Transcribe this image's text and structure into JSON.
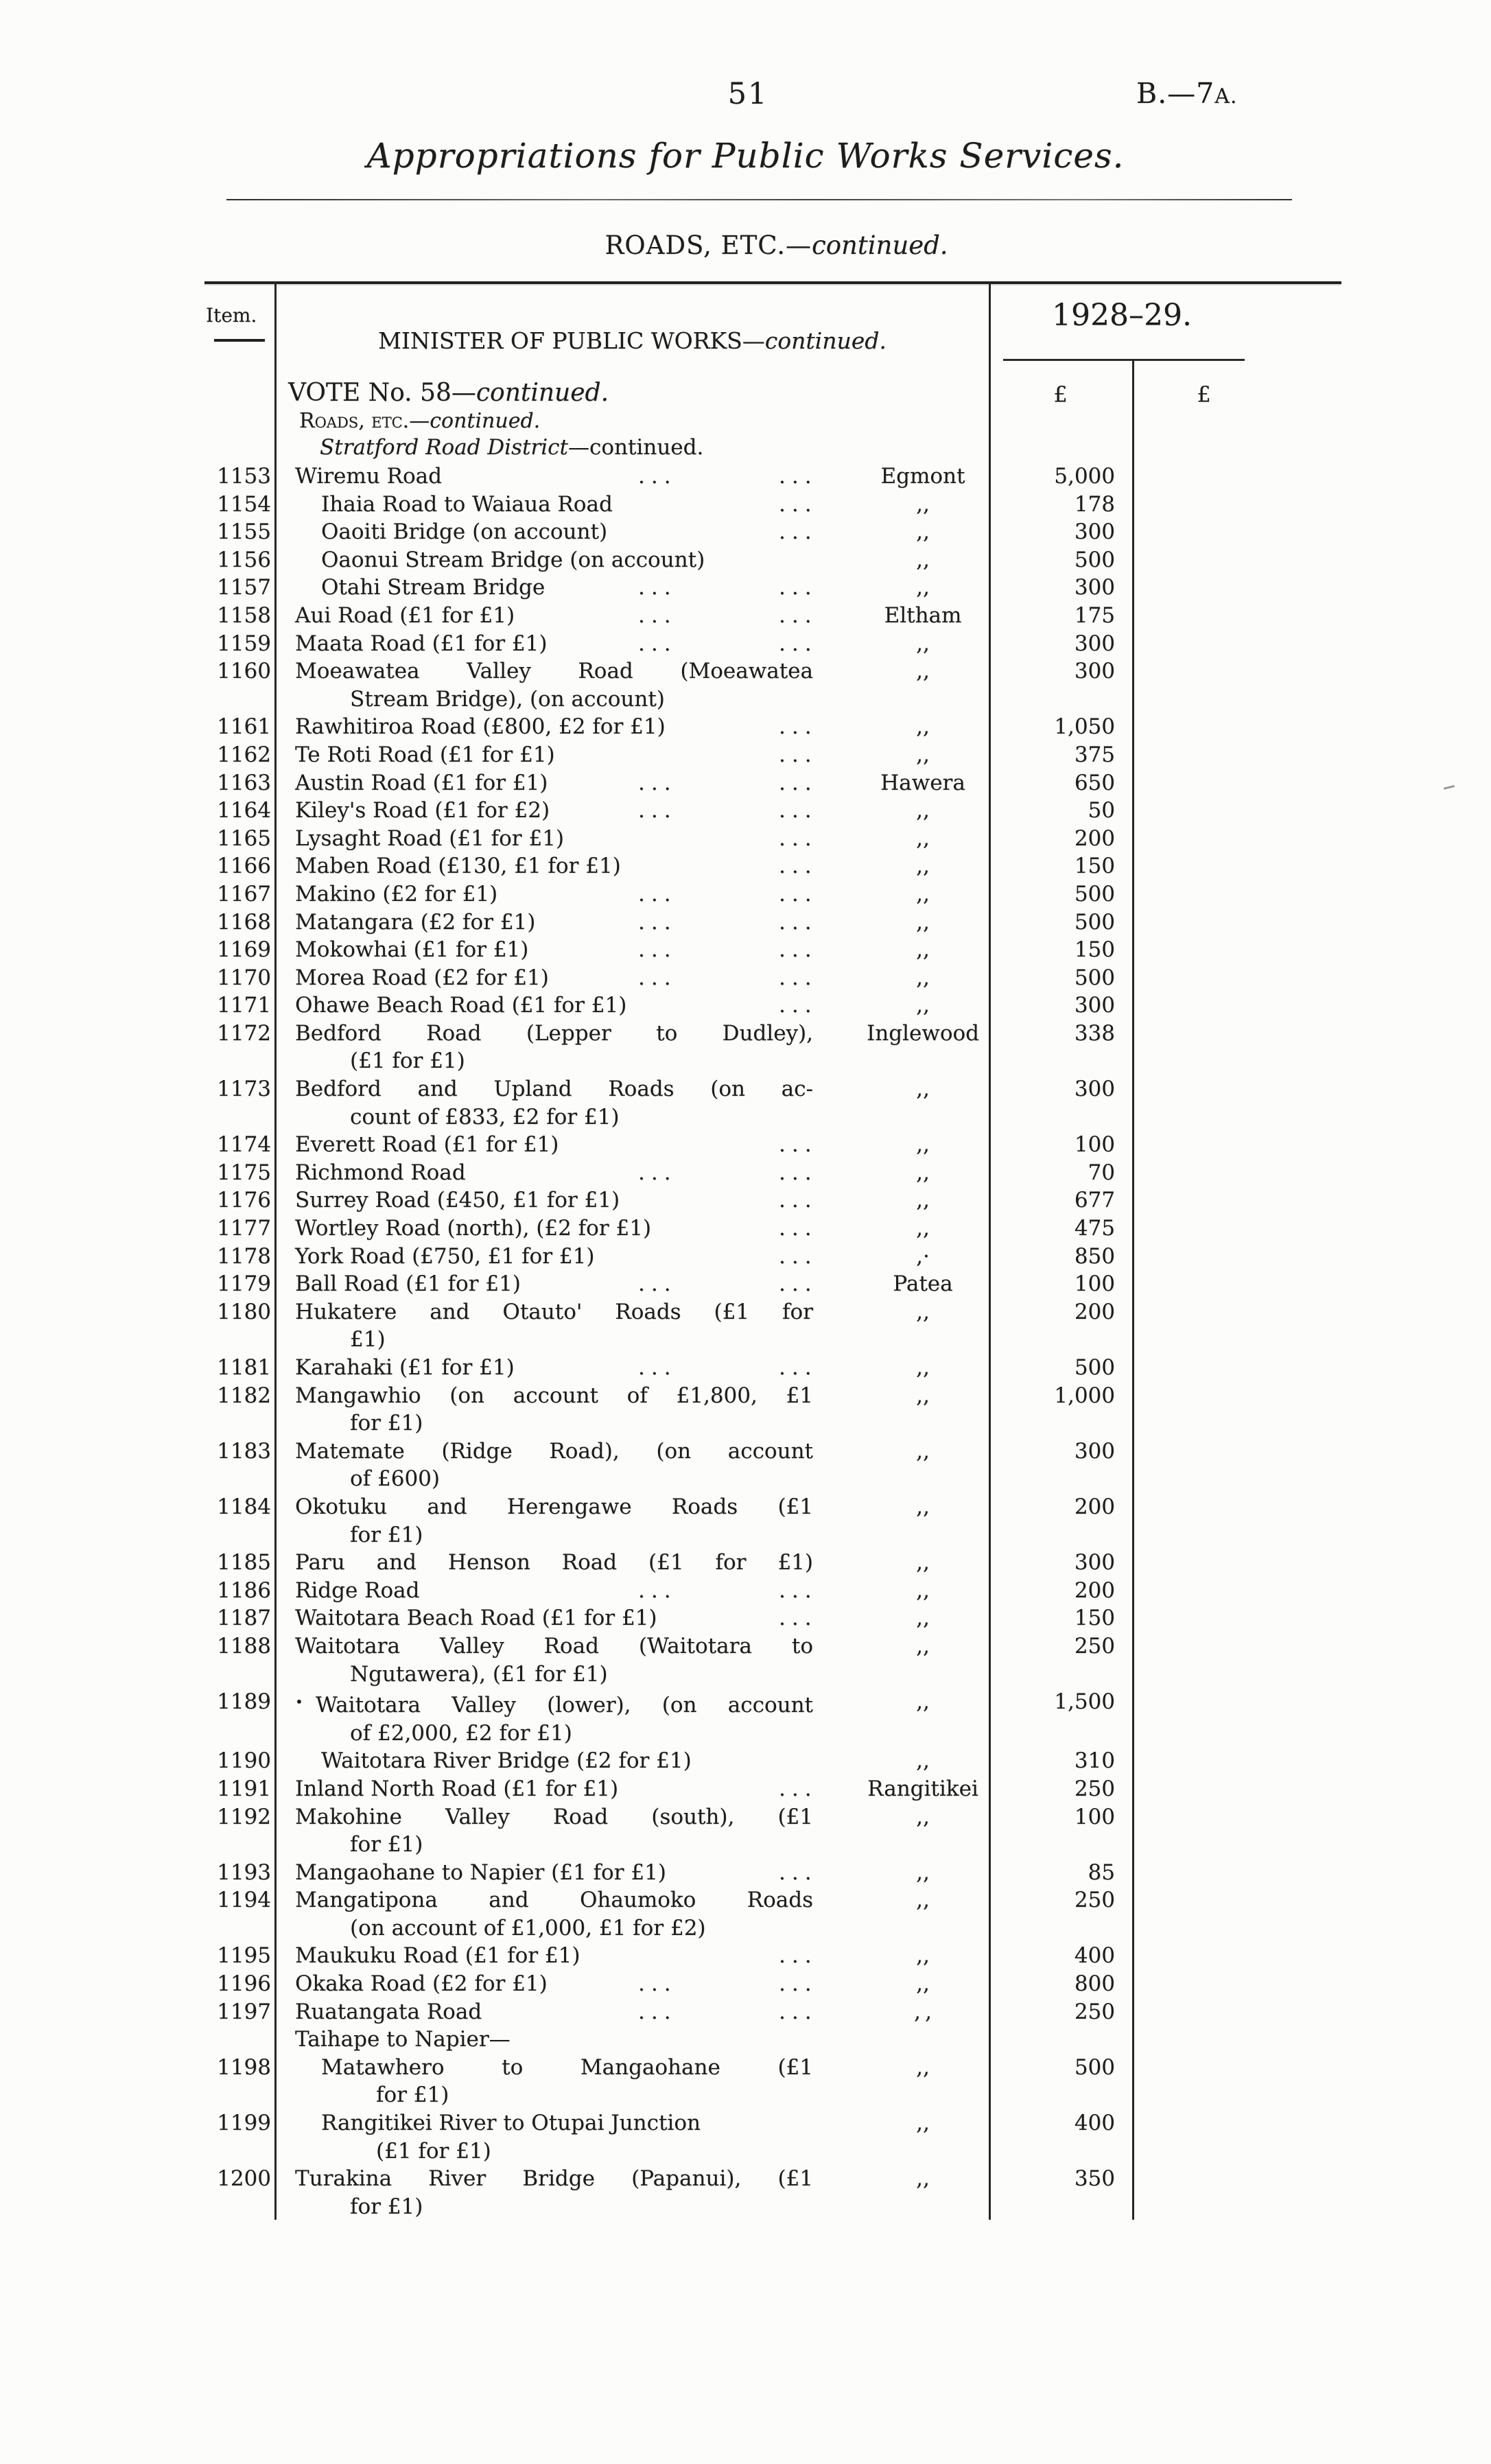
{
  "page_header": {
    "page_number": "51",
    "doc_ref_main": "B.—7",
    "doc_ref_small": "A.",
    "title": "Appropriations for Public Works Services.",
    "section_main": "ROADS, ETC.—",
    "section_cont": "continued."
  },
  "table": {
    "item_header": "Item.",
    "minister_main": "MINISTER OF PUBLIC WORKS—",
    "minister_cont": "continued.",
    "year": "1928–29.",
    "currency": "£",
    "vote_main": "VOTE No. 58—",
    "vote_cont": "continued.",
    "roads_main": "Roads, etc.—",
    "roads_cont": "continued.",
    "district_main": "Stratford Road District",
    "district_cont": "—continued.",
    "leader_dots": "...",
    "rows": [
      {
        "item": "1153",
        "lines": [
          {
            "text": "Wiremu Road",
            "dots": [
              1,
              2
            ]
          }
        ],
        "locality": "Egmont",
        "amount": "5,000"
      },
      {
        "item": "1154",
        "indent": 1,
        "lines": [
          {
            "text": "Ihaia Road to Waiaua Road",
            "dots": [
              2
            ]
          }
        ],
        "locality": ",,",
        "amount": "178"
      },
      {
        "item": "1155",
        "indent": 1,
        "lines": [
          {
            "text": "Oaoiti Bridge (on account)",
            "dots": [
              2
            ]
          }
        ],
        "locality": ",,",
        "amount": "300"
      },
      {
        "item": "1156",
        "indent": 1,
        "lines": [
          {
            "text": "Oaonui Stream Bridge (on account)"
          }
        ],
        "locality": ",,",
        "amount": "500"
      },
      {
        "item": "1157",
        "indent": 1,
        "lines": [
          {
            "text": "Otahi Stream Bridge",
            "dots": [
              1,
              2
            ]
          }
        ],
        "locality": ",,",
        "amount": "300"
      },
      {
        "item": "1158",
        "lines": [
          {
            "text": "Aui Road (£1 for £1)",
            "dots": [
              1,
              2
            ]
          }
        ],
        "locality": "Eltham",
        "amount": "175"
      },
      {
        "item": "1159",
        "lines": [
          {
            "text": "Maata Road (£1 for £1)",
            "dots": [
              1,
              2
            ]
          }
        ],
        "locality": ",,",
        "amount": "300"
      },
      {
        "item": "1160",
        "lines": [
          {
            "text": "Moeawatea Valley Road (Moeawatea",
            "justify": true
          },
          {
            "text": "Stream Bridge), (on account)",
            "continuation": true
          }
        ],
        "locality": ",,",
        "amount": "300"
      },
      {
        "item": "1161",
        "lines": [
          {
            "text": "Rawhitiroa Road (£800, £2 for £1)",
            "dots": [
              2
            ]
          }
        ],
        "locality": ",,",
        "amount": "1,050"
      },
      {
        "item": "1162",
        "lines": [
          {
            "text": "Te Roti Road (£1 for £1)",
            "dots": [
              2
            ]
          }
        ],
        "locality": ",,",
        "amount": "375"
      },
      {
        "item": "1163",
        "lines": [
          {
            "text": "Austin Road (£1 for £1)",
            "dots": [
              1,
              2
            ]
          }
        ],
        "locality": "Hawera",
        "amount": "650"
      },
      {
        "item": "1164",
        "lines": [
          {
            "text": "Kiley's Road (£1 for £2)",
            "dots": [
              1,
              2
            ]
          }
        ],
        "locality": ",,",
        "amount": "50"
      },
      {
        "item": "1165",
        "lines": [
          {
            "text": "Lysaght Road (£1 for £1)",
            "dots": [
              2
            ]
          }
        ],
        "locality": ",,",
        "amount": "200"
      },
      {
        "item": "1166",
        "lines": [
          {
            "text": "Maben Road (£130, £1 for £1)",
            "dots": [
              2
            ]
          }
        ],
        "locality": ",,",
        "amount": "150"
      },
      {
        "item": "1167",
        "lines": [
          {
            "text": "Makino (£2 for £1)",
            "dots": [
              1,
              2
            ]
          }
        ],
        "locality": ",,",
        "amount": "500"
      },
      {
        "item": "1168",
        "lines": [
          {
            "text": "Matangara (£2 for £1)",
            "dots": [
              1,
              2
            ]
          }
        ],
        "locality": ",,",
        "amount": "500"
      },
      {
        "item": "1169",
        "lines": [
          {
            "text": "Mokowhai (£1 for £1)",
            "dots": [
              1,
              2
            ]
          }
        ],
        "locality": ",,",
        "amount": "150"
      },
      {
        "item": "1170",
        "lines": [
          {
            "text": "Morea Road (£2 for £1)",
            "dots": [
              1,
              2
            ]
          }
        ],
        "locality": ",,",
        "amount": "500"
      },
      {
        "item": "1171",
        "lines": [
          {
            "text": "Ohawe Beach Road (£1 for £1)",
            "dots": [
              2
            ]
          }
        ],
        "locality": ",,",
        "amount": "300"
      },
      {
        "item": "1172",
        "lines": [
          {
            "text": "Bedford Road (Lepper to Dudley),",
            "justify": true
          },
          {
            "text": "(£1 for £1)",
            "continuation": true
          }
        ],
        "locality": "Inglewood",
        "amount": "338"
      },
      {
        "item": "1173",
        "lines": [
          {
            "text": "Bedford and Upland Roads (on ac-",
            "justify": true
          },
          {
            "text": "count of £833, £2 for £1)",
            "continuation": true
          }
        ],
        "locality": ",,",
        "amount": "300"
      },
      {
        "item": "1174",
        "lines": [
          {
            "text": "Everett Road (£1 for £1)",
            "dots": [
              2
            ]
          }
        ],
        "locality": ",,",
        "amount": "100"
      },
      {
        "item": "1175",
        "lines": [
          {
            "text": "Richmond Road",
            "dots": [
              1,
              2
            ]
          }
        ],
        "locality": ",,",
        "amount": "70"
      },
      {
        "item": "1176",
        "lines": [
          {
            "text": "Surrey Road (£450, £1 for £1)",
            "dots": [
              2
            ]
          }
        ],
        "locality": ",,",
        "amount": "677"
      },
      {
        "item": "1177",
        "lines": [
          {
            "text": "Wortley Road (north), (£2 for £1)",
            "dots": [
              2
            ]
          }
        ],
        "locality": ",,",
        "amount": "475"
      },
      {
        "item": "1178",
        "lines": [
          {
            "text": "York Road (£750, £1 for £1)",
            "dots": [
              2
            ]
          }
        ],
        "locality": ",·",
        "amount": "850"
      },
      {
        "item": "1179",
        "lines": [
          {
            "text": "Ball Road (£1 for £1)",
            "dots": [
              1,
              2
            ]
          }
        ],
        "locality": "Patea",
        "amount": "100"
      },
      {
        "item": "1180",
        "lines": [
          {
            "text": "Hukatere and Otauto' Roads (£1 for",
            "justify": true
          },
          {
            "text": "£1)",
            "continuation": true
          }
        ],
        "locality": ",,",
        "amount": "200"
      },
      {
        "item": "1181",
        "lines": [
          {
            "text": "Karahaki (£1 for £1)",
            "dots": [
              1,
              2
            ]
          }
        ],
        "locality": ",,",
        "amount": "500"
      },
      {
        "item": "1182",
        "lines": [
          {
            "text": "Mangawhio (on account of £1,800, £1",
            "justify": true
          },
          {
            "text": "for £1)",
            "continuation": true
          }
        ],
        "locality": ",,",
        "amount": "1,000"
      },
      {
        "item": "1183",
        "lines": [
          {
            "text": "Matemate (Ridge Road), (on account",
            "justify": true
          },
          {
            "text": "of £600)",
            "continuation": true
          }
        ],
        "locality": ",,",
        "amount": "300"
      },
      {
        "item": "1184",
        "lines": [
          {
            "text": "Okotuku and Herengawe Roads (£1",
            "justify": true
          },
          {
            "text": "for £1)",
            "continuation": true
          }
        ],
        "locality": ",,",
        "amount": "200"
      },
      {
        "item": "1185",
        "lines": [
          {
            "text": "Paru and Henson Road (£1 for £1)",
            "justify": true
          }
        ],
        "locality": ",,",
        "amount": "300"
      },
      {
        "item": "1186",
        "lines": [
          {
            "text": "Ridge Road",
            "dots": [
              1,
              2
            ]
          }
        ],
        "locality": ",,",
        "amount": "200"
      },
      {
        "item": "1187",
        "lines": [
          {
            "text": "Waitotara Beach Road (£1 for £1)",
            "dots": [
              2
            ]
          }
        ],
        "locality": ",,",
        "amount": "150"
      },
      {
        "item": "1188",
        "lines": [
          {
            "text": "Waitotara Valley Road (Waitotara to",
            "justify": true
          },
          {
            "text": "Ngutawera), (£1 for £1)",
            "continuation": true
          }
        ],
        "locality": ",,",
        "amount": "250"
      },
      {
        "item": "1189",
        "prefix": "•",
        "lines": [
          {
            "text": "Waitotara Valley (lower), (on account",
            "justify": true
          },
          {
            "text": "of £2,000, £2 for £1)",
            "continuation": true
          }
        ],
        "locality": ",,",
        "amount": "1,500"
      },
      {
        "item": "1190",
        "indent": 1,
        "lines": [
          {
            "text": "Waitotara River Bridge (£2 for £1)"
          }
        ],
        "locality": ",,",
        "amount": "310"
      },
      {
        "item": "1191",
        "lines": [
          {
            "text": "Inland North Road (£1 for £1)",
            "dots": [
              2
            ]
          }
        ],
        "locality": "Rangitikei",
        "amount": "250"
      },
      {
        "item": "1192",
        "lines": [
          {
            "text": "Makohine Valley Road (south), (£1",
            "justify": true
          },
          {
            "text": "for £1)",
            "continuation": true
          }
        ],
        "locality": ",,",
        "amount": "100"
      },
      {
        "item": "1193",
        "lines": [
          {
            "text": "Mangaohane to Napier (£1 for £1)",
            "dots": [
              2
            ]
          }
        ],
        "locality": ",,",
        "amount": "85"
      },
      {
        "item": "1194",
        "lines": [
          {
            "text": "Mangatipona and Ohaumoko Roads",
            "justify": true
          },
          {
            "text": "(on account of £1,000, £1 for £2)",
            "continuation": true
          }
        ],
        "locality": ",,",
        "amount": "250"
      },
      {
        "item": "1195",
        "lines": [
          {
            "text": "Maukuku Road (£1 for £1)",
            "dots": [
              2
            ]
          }
        ],
        "locality": ",,",
        "amount": "400"
      },
      {
        "item": "1196",
        "lines": [
          {
            "text": "Okaka Road (£2 for £1)",
            "dots": [
              1,
              2
            ]
          }
        ],
        "locality": ",,",
        "amount": "800"
      },
      {
        "item": "1197",
        "lines": [
          {
            "text": "Ruatangata Road",
            "dots": [
              1,
              2
            ]
          }
        ],
        "locality": ", ,",
        "amount": "250"
      },
      {
        "item": "",
        "lines": [
          {
            "text": "Taihape to Napier—"
          }
        ],
        "locality": "",
        "amount": ""
      },
      {
        "item": "1198",
        "indent": 1,
        "lines": [
          {
            "text": "Matawhero to Mangaohane (£1",
            "justify": true
          },
          {
            "text": "for £1)",
            "continuation": true
          }
        ],
        "locality": ",,",
        "amount": "500"
      },
      {
        "item": "1199",
        "indent": 1,
        "lines": [
          {
            "text": "Rangitikei River to Otupai Junction"
          },
          {
            "text": "(£1 for £1)",
            "continuation": true
          }
        ],
        "locality": ",,",
        "amount": "400"
      },
      {
        "item": "1200",
        "lines": [
          {
            "text": "Turakina River Bridge (Papanui), (£1",
            "justify": true
          },
          {
            "text": "for £1)",
            "continuation": true
          }
        ],
        "locality": ",,",
        "amount": "350"
      }
    ]
  }
}
